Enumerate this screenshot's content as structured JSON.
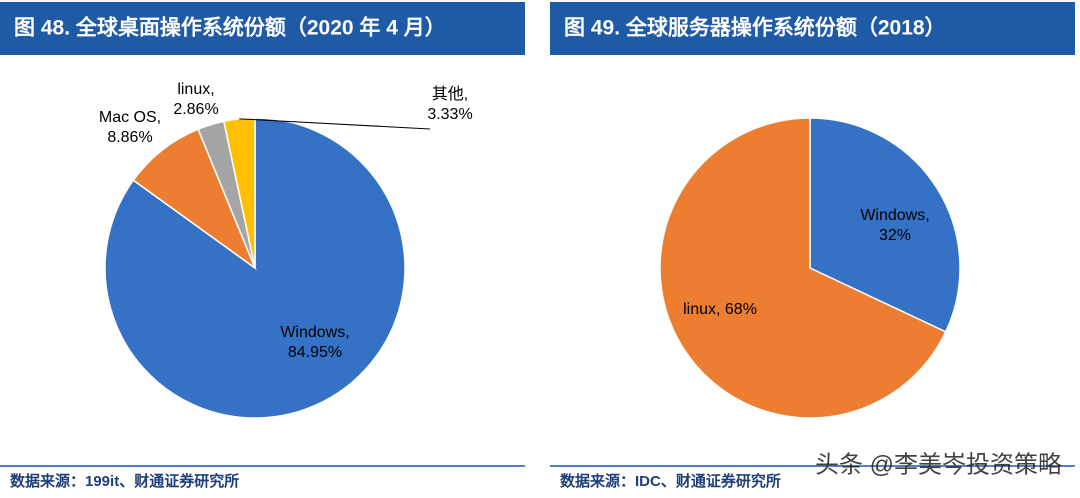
{
  "chart_data": [
    {
      "type": "pie",
      "title": "图 48. 全球桌面操作系统份额（2020 年 4 月）",
      "categories": [
        "Windows,",
        "Mac OS,",
        "linux,",
        "其他,"
      ],
      "values": [
        84.95,
        8.86,
        2.86,
        3.33
      ],
      "value_labels": [
        "84.95%",
        "8.86%",
        "2.86%",
        "3.33%"
      ],
      "colors": [
        "#3571c5",
        "#ed7d31",
        "#a5a5a5",
        "#ffc000"
      ],
      "source": "数据来源：199it、财通证券研究所"
    },
    {
      "type": "pie",
      "title": "图 49. 全球服务器操作系统份额（2018）",
      "categories": [
        "Windows,",
        "linux,"
      ],
      "values": [
        32,
        68
      ],
      "value_labels": [
        "32%",
        "68%"
      ],
      "colors": [
        "#3571c5",
        "#ed7d31"
      ],
      "source": "数据来源：IDC、财通证券研究所"
    }
  ],
  "watermark": "头条 @李美岑投资策略"
}
